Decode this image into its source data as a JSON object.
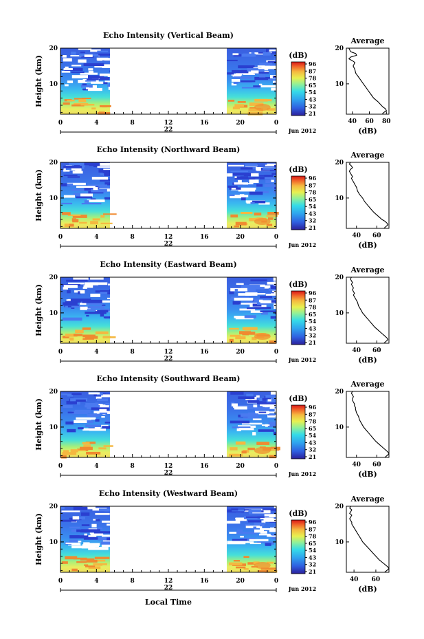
{
  "xlabel": "Local Time",
  "chart_data": [
    {
      "type": "heatmap",
      "title": "Echo Intensity (Vertical Beam)",
      "ylabel": "Height (km)",
      "x_ticks": [
        "0",
        "4",
        "8",
        "12",
        "16",
        "20",
        "0"
      ],
      "x_date_label": "22",
      "month_label": "Jun 2012",
      "xlim": [
        0,
        24
      ],
      "ylim": [
        1.5,
        20
      ],
      "y_ticks": [
        "10",
        "20"
      ],
      "colorbar": {
        "label": "(dB)",
        "ticks": [
          "96",
          "87",
          "78",
          "65",
          "54",
          "43",
          "32",
          "21"
        ]
      },
      "data_windows_hours": [
        [
          0,
          5.5
        ],
        [
          18.5,
          24
        ]
      ],
      "average_profile": {
        "title": "Average",
        "xlabel": "(dB)",
        "x_ticks": [
          "40",
          "60",
          "80"
        ],
        "xlim": [
          33,
          83
        ],
        "y_ticks": [
          "10",
          "20"
        ],
        "height_km": [
          20,
          19.5,
          19,
          18.5,
          18,
          17.5,
          17,
          16.5,
          16,
          15.5,
          15,
          14,
          13,
          12,
          11,
          10,
          9,
          8,
          7,
          6,
          5,
          4,
          3.5,
          3,
          2.5,
          2,
          1.5
        ],
        "values_db": [
          36,
          37,
          38,
          44,
          45,
          38,
          36,
          40,
          43,
          42,
          41,
          43,
          44,
          47,
          50,
          53,
          56,
          59,
          62,
          65,
          70,
          74,
          76,
          79,
          80,
          77,
          75
        ]
      }
    },
    {
      "type": "heatmap",
      "title": "Echo Intensity (Northward Beam)",
      "ylabel": "Height (km)",
      "x_ticks": [
        "0",
        "4",
        "8",
        "12",
        "16",
        "20",
        "0"
      ],
      "x_date_label": "22",
      "month_label": "Jun 2012",
      "xlim": [
        0,
        24
      ],
      "ylim": [
        1.5,
        20
      ],
      "y_ticks": [
        "10",
        "20"
      ],
      "colorbar": {
        "label": "(dB)",
        "ticks": [
          "96",
          "87",
          "78",
          "65",
          "54",
          "43",
          "32",
          "21"
        ]
      },
      "data_windows_hours": [
        [
          0,
          5.5
        ],
        [
          18.5,
          24
        ]
      ],
      "average_profile": {
        "title": "Average",
        "xlabel": "(dB)",
        "x_ticks": [
          "40",
          "60"
        ],
        "xlim": [
          30,
          72
        ],
        "y_ticks": [
          "10",
          "20"
        ],
        "height_km": [
          20,
          19.5,
          19,
          18.5,
          18,
          17.5,
          17,
          16.5,
          16,
          15.5,
          15,
          14,
          13,
          12,
          11,
          10,
          9,
          8,
          7,
          6,
          5,
          4,
          3.5,
          3,
          2.5,
          2,
          1.5
        ],
        "values_db": [
          34,
          33,
          35,
          36,
          34,
          33,
          34,
          35,
          36,
          35,
          36,
          38,
          40,
          41,
          43,
          46,
          48,
          51,
          54,
          57,
          61,
          65,
          68,
          70,
          71,
          69,
          67
        ]
      }
    },
    {
      "type": "heatmap",
      "title": "Echo Intensity (Eastward Beam)",
      "ylabel": "Height (km)",
      "x_ticks": [
        "0",
        "4",
        "8",
        "12",
        "16",
        "20",
        "0"
      ],
      "x_date_label": "22",
      "month_label": "Jun 2012",
      "xlim": [
        0,
        24
      ],
      "ylim": [
        1.5,
        20
      ],
      "y_ticks": [
        "10",
        "20"
      ],
      "colorbar": {
        "label": "(dB)",
        "ticks": [
          "96",
          "87",
          "78",
          "65",
          "54",
          "43",
          "32",
          "21"
        ]
      },
      "data_windows_hours": [
        [
          0,
          5.5
        ],
        [
          18.5,
          24
        ]
      ],
      "average_profile": {
        "title": "Average",
        "xlabel": "(dB)",
        "x_ticks": [
          "40",
          "60"
        ],
        "xlim": [
          30,
          72
        ],
        "y_ticks": [
          "10",
          "20"
        ],
        "height_km": [
          20,
          19.5,
          19,
          18.5,
          18,
          17.5,
          17,
          16.5,
          16,
          15.5,
          15,
          14,
          13,
          12,
          11,
          10,
          9,
          8,
          7,
          6,
          5,
          4,
          3.5,
          3,
          2.5,
          2,
          1.5
        ],
        "values_db": [
          35,
          34,
          35,
          36,
          35,
          36,
          37,
          36,
          37,
          38,
          37,
          39,
          41,
          42,
          44,
          46,
          49,
          52,
          55,
          58,
          62,
          66,
          68,
          70,
          71,
          69,
          67
        ]
      }
    },
    {
      "type": "heatmap",
      "title": "Echo Intensity (Southward Beam)",
      "ylabel": "Height (km)",
      "x_ticks": [
        "0",
        "4",
        "8",
        "12",
        "16",
        "20",
        "0"
      ],
      "x_date_label": "22",
      "month_label": "Jun 2012",
      "xlim": [
        0,
        24
      ],
      "ylim": [
        1.5,
        20
      ],
      "y_ticks": [
        "10",
        "20"
      ],
      "colorbar": {
        "label": "(dB)",
        "ticks": [
          "96",
          "87",
          "78",
          "65",
          "54",
          "43",
          "32",
          "21"
        ]
      },
      "data_windows_hours": [
        [
          0,
          5.5
        ],
        [
          18.5,
          24
        ]
      ],
      "average_profile": {
        "title": "Average",
        "xlabel": "(dB)",
        "x_ticks": [
          "40",
          "60"
        ],
        "xlim": [
          30,
          72
        ],
        "y_ticks": [
          "10",
          "20"
        ],
        "height_km": [
          20,
          19.5,
          19,
          18.5,
          18,
          17.5,
          17,
          16.5,
          16,
          15.5,
          15,
          14,
          13,
          12,
          11,
          10,
          9,
          8,
          7,
          6,
          5,
          4,
          3.5,
          3,
          2.5,
          2,
          1.5
        ],
        "values_db": [
          36,
          35,
          36,
          37,
          36,
          36,
          37,
          38,
          38,
          39,
          39,
          40,
          42,
          43,
          45,
          47,
          50,
          53,
          56,
          59,
          63,
          67,
          69,
          71,
          72,
          70,
          68
        ]
      }
    },
    {
      "type": "heatmap",
      "title": "Echo Intensity (Westward Beam)",
      "ylabel": "Height (km)",
      "x_ticks": [
        "0",
        "4",
        "8",
        "12",
        "16",
        "20",
        "0"
      ],
      "x_date_label": "22",
      "month_label": "Jun 2012",
      "xlim": [
        0,
        24
      ],
      "ylim": [
        1.5,
        20
      ],
      "y_ticks": [
        "10",
        "20"
      ],
      "colorbar": {
        "label": "(dB)",
        "ticks": [
          "96",
          "87",
          "78",
          "65",
          "54",
          "43",
          "32",
          "21"
        ]
      },
      "data_windows_hours": [
        [
          0,
          5.5
        ],
        [
          18.5,
          24
        ]
      ],
      "average_profile": {
        "title": "Average",
        "xlabel": "(dB)",
        "x_ticks": [
          "40",
          "60"
        ],
        "xlim": [
          33,
          72
        ],
        "y_ticks": [
          "10",
          "20"
        ],
        "height_km": [
          20,
          19.5,
          19,
          18.5,
          18,
          17.5,
          17,
          16.5,
          16,
          15.5,
          15,
          14,
          13,
          12,
          11,
          10,
          9,
          8,
          7,
          6,
          5,
          4,
          3.5,
          3,
          2.5,
          2,
          1.5
        ],
        "values_db": [
          37,
          36,
          38,
          37,
          36,
          38,
          37,
          36,
          37,
          38,
          38,
          40,
          42,
          44,
          46,
          48,
          51,
          54,
          57,
          60,
          63,
          67,
          69,
          71,
          72,
          70,
          68
        ]
      }
    }
  ]
}
